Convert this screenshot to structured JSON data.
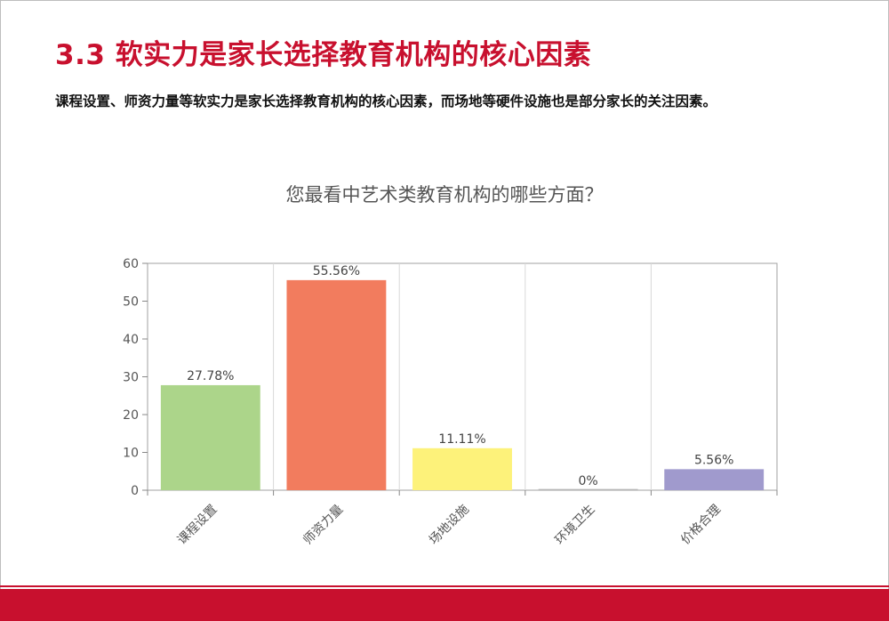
{
  "slide": {
    "title": "3.3 软实力是家长选择教育机构的核心因素",
    "subtitle": "课程设置、师资力量等软实力是家长选择教育机构的核心因素，而场地等硬件设施也是部分家长的关注因素。",
    "accent_color": "#c8102e"
  },
  "chart_data": {
    "type": "bar",
    "title": "您最看中艺术类教育机构的哪些方面？",
    "categories": [
      "课程设置",
      "师资力量",
      "场地设施",
      "环境卫生",
      "价格合理"
    ],
    "values": [
      27.78,
      55.56,
      11.11,
      0,
      5.56
    ],
    "data_labels": [
      "27.78%",
      "55.56%",
      "11.11%",
      "0%",
      "5.56%"
    ],
    "colors": [
      "#acd58a",
      "#f27c5e",
      "#fdf27a",
      "#c8c8c8",
      "#a09acd"
    ],
    "ylim": [
      0,
      60
    ],
    "yticks": [
      0,
      10,
      20,
      30,
      40,
      50,
      60
    ],
    "grid": true,
    "legend": "none"
  }
}
